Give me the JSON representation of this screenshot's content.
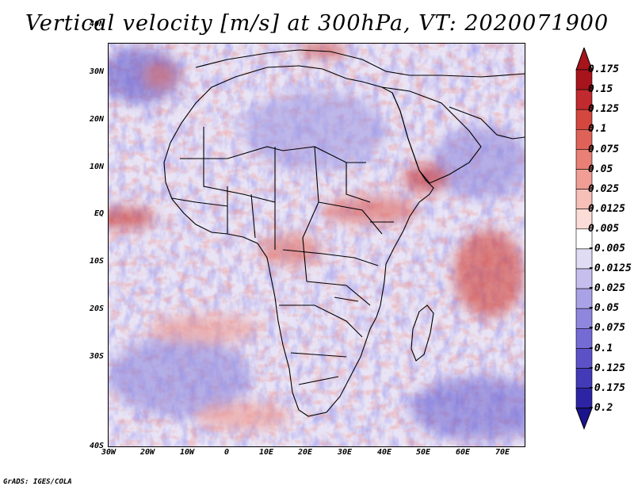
{
  "title": "Vertical velocity [m/s] at 300hPa, VT: 2020071900",
  "credit": "GrADS: IGES/COLA",
  "latitude_labels": [
    "40N",
    "30N",
    "20N",
    "10N",
    "EQ",
    "10S",
    "20S",
    "30S",
    "40S"
  ],
  "longitude_labels": [
    "30W",
    "20W",
    "10W",
    "0",
    "10E",
    "20E",
    "30E",
    "40E",
    "50E",
    "60E",
    "70E"
  ],
  "colorbar": {
    "levels": [
      {
        "label": "0.175",
        "color": "#a8141c"
      },
      {
        "label": "0.15",
        "color": "#c12a2e"
      },
      {
        "label": "0.125",
        "color": "#d4473f"
      },
      {
        "label": "0.1",
        "color": "#df6259"
      },
      {
        "label": "0.075",
        "color": "#e88075"
      },
      {
        "label": "0.05",
        "color": "#f09e95"
      },
      {
        "label": "0.025",
        "color": "#f6bfb7"
      },
      {
        "label": "0.0125",
        "color": "#fbdcd6"
      },
      {
        "label": "0.005",
        "color": "#ffffff"
      },
      {
        "label": "-0.005",
        "color": "#e0dcf4"
      },
      {
        "label": "-0.0125",
        "color": "#c6bfee"
      },
      {
        "label": "-0.025",
        "color": "#aaa2e6"
      },
      {
        "label": "-0.05",
        "color": "#8f86de"
      },
      {
        "label": "-0.075",
        "color": "#756bd4"
      },
      {
        "label": "-0.1",
        "color": "#5c52c8"
      },
      {
        "label": "-0.125",
        "color": "#433ab8"
      },
      {
        "label": "-0.175",
        "color": "#2d24a4"
      },
      {
        "label": "-0.2",
        "color": "#1c148c"
      }
    ],
    "top_color": "#a8141c",
    "bottom_color": "#1c148c"
  }
}
